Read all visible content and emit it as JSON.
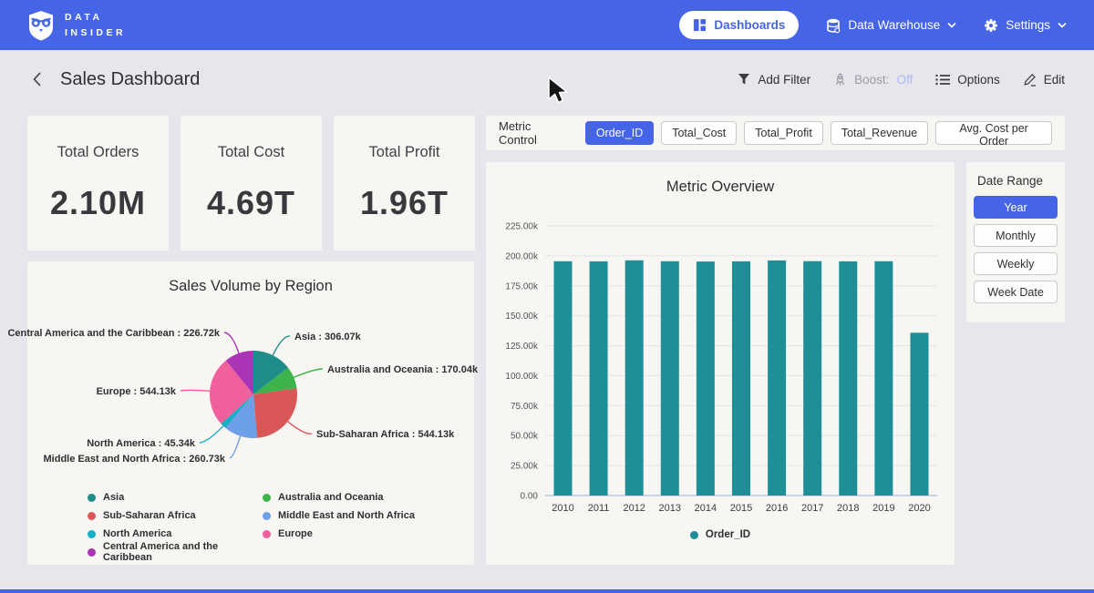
{
  "navbar": {
    "brand_line1": "DATA",
    "brand_line2": "INSIDER",
    "dashboards_label": "Dashboards",
    "data_warehouse_label": "Data Warehouse",
    "settings_label": "Settings"
  },
  "header": {
    "title": "Sales Dashboard",
    "add_filter_label": "Add Filter",
    "boost_label": "Boost:",
    "boost_state": "Off",
    "options_label": "Options",
    "edit_label": "Edit"
  },
  "kpis": [
    {
      "label": "Total Orders",
      "value": "2.10M"
    },
    {
      "label": "Total Cost",
      "value": "4.69T"
    },
    {
      "label": "Total Profit",
      "value": "1.96T"
    }
  ],
  "metric_control": {
    "label": "Metric Control",
    "options": [
      "Order_ID",
      "Total_Cost",
      "Total_Profit",
      "Total_Revenue",
      "Avg. Cost per Order"
    ],
    "selected": "Order_ID"
  },
  "date_range": {
    "label": "Date Range",
    "options": [
      "Year",
      "Monthly",
      "Weekly",
      "Week Date"
    ],
    "selected": "Year"
  },
  "colors": {
    "accent_blue": "#4565e6",
    "bar_teal": "#1e8f96"
  },
  "chart_data": [
    {
      "type": "pie",
      "title": "Sales Volume by Region",
      "slices": [
        {
          "label": "Asia",
          "value_k": 306.07,
          "display": "Asia : 306.07k",
          "color": "#1f8d8a"
        },
        {
          "label": "Australia and Oceania",
          "value_k": 170.04,
          "display": "Australia and Oceania : 170.04k",
          "color": "#3cb44b"
        },
        {
          "label": "Sub-Saharan Africa",
          "value_k": 544.13,
          "display": "Sub-Saharan Africa : 544.13k",
          "color": "#da5757"
        },
        {
          "label": "Middle East and North Africa",
          "value_k": 260.73,
          "display": "Middle East and North Africa : 260.73k",
          "color": "#6d9ee8"
        },
        {
          "label": "North America",
          "value_k": 45.34,
          "display": "North America : 45.34k",
          "color": "#16aec4"
        },
        {
          "label": "Europe",
          "value_k": 544.13,
          "display": "Europe : 544.13k",
          "color": "#f0609c"
        },
        {
          "label": "Central America and the Caribbean",
          "value_k": 226.72,
          "display": "Central America and the Caribbean : 226.72k",
          "color": "#ab34b4"
        }
      ],
      "legend_order": [
        "Asia",
        "Sub-Saharan Africa",
        "North America",
        "Central America and the Caribbean",
        "Australia and Oceania",
        "Middle East and North Africa",
        "Europe"
      ]
    },
    {
      "type": "bar",
      "title": "Metric Overview",
      "categories": [
        "2010",
        "2011",
        "2012",
        "2013",
        "2014",
        "2015",
        "2016",
        "2017",
        "2018",
        "2019",
        "2020"
      ],
      "series": [
        {
          "name": "Order_ID",
          "color": "#1e8f96",
          "values": [
            195500,
            195400,
            196300,
            195500,
            195300,
            195400,
            196200,
            195600,
            195400,
            195500,
            135800
          ]
        }
      ],
      "ylim": [
        0,
        225000
      ],
      "y_ticks": [
        {
          "value": 0,
          "label": "0.00"
        },
        {
          "value": 25000,
          "label": "25.00k"
        },
        {
          "value": 50000,
          "label": "50.00k"
        },
        {
          "value": 75000,
          "label": "75.00k"
        },
        {
          "value": 100000,
          "label": "100.00k"
        },
        {
          "value": 125000,
          "label": "125.00k"
        },
        {
          "value": 150000,
          "label": "150.00k"
        },
        {
          "value": 175000,
          "label": "175.00k"
        },
        {
          "value": 200000,
          "label": "200.00k"
        },
        {
          "value": 225000,
          "label": "225.00k"
        }
      ],
      "legend": [
        "Order_ID"
      ],
      "grid": true,
      "legend_position": "bottom"
    }
  ]
}
